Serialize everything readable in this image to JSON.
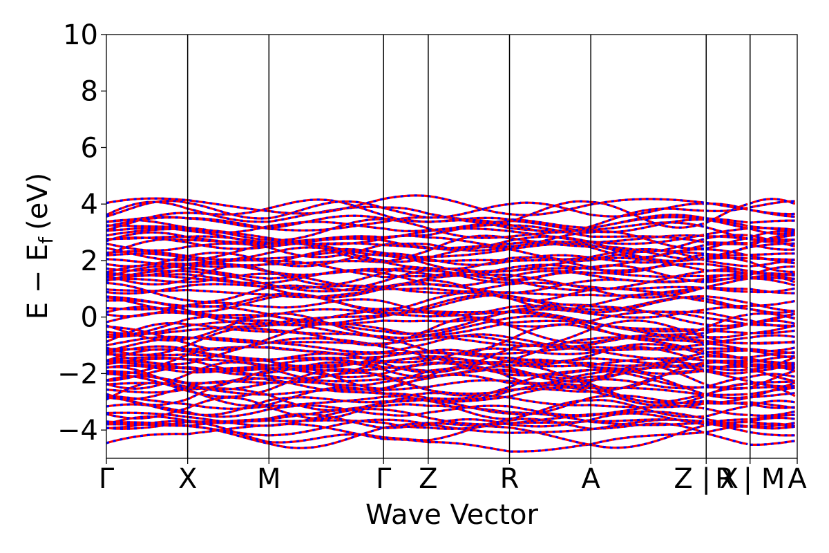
{
  "chart_data": {
    "type": "line",
    "xlabel": "Wave Vector",
    "ylabel": "E − E",
    "ylabel_subscript": "f",
    "ylabel_unit": "(eV)",
    "ylim": [
      -5,
      10
    ],
    "yticks": [
      10,
      8,
      6,
      4,
      2,
      0,
      -2,
      -4
    ],
    "ytick_labels": [
      "10",
      "8",
      "6",
      "4",
      "2",
      "0",
      "−2",
      "−4"
    ],
    "xlim": [
      0,
      8.5
    ],
    "path_ticks": [
      {
        "x": 0.0,
        "label": "Γ"
      },
      {
        "x": 1.0,
        "label": "X"
      },
      {
        "x": 2.0,
        "label": "M"
      },
      {
        "x": 3.41,
        "label": "Γ"
      },
      {
        "x": 3.96,
        "label": "Z"
      },
      {
        "x": 4.96,
        "label": "R"
      },
      {
        "x": 5.96,
        "label": "A"
      },
      {
        "x": 7.38,
        "label": "Z | X"
      },
      {
        "x": 7.92,
        "label": "R | M"
      },
      {
        "x": 8.5,
        "label": "A"
      }
    ],
    "band_break_x": [
      7.38,
      7.92
    ],
    "band_groups": [
      {
        "name": "",
        "range": [
          -4.3,
          -2.7
        ],
        "count": 14
      },
      {
        "name": "",
        "range": [
          -2.6,
          -1.1
        ],
        "count": 20
      },
      {
        "name": "",
        "range": [
          -1.0,
          0.6
        ],
        "count": 16
      },
      {
        "name": "",
        "range": [
          0.8,
          3.0
        ],
        "count": 24
      },
      {
        "name": "",
        "range": [
          3.0,
          4.0
        ],
        "count": 8
      }
    ],
    "colors": {
      "band": "#ff0000",
      "band_dash": "#0000ff",
      "axis": "#000000"
    }
  }
}
